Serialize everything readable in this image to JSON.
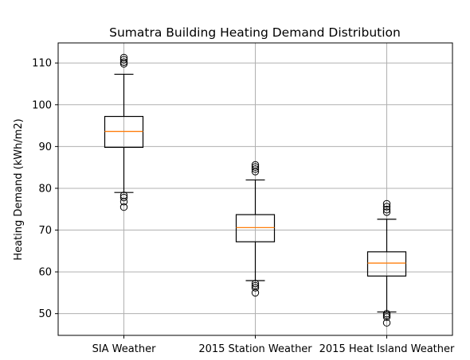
{
  "chart_data": {
    "type": "box",
    "title": "Sumatra Building Heating Demand Distribution",
    "xlabel": "",
    "ylabel": "Heating Demand (kWh/m2)",
    "ylim": [
      44.8,
      114.8
    ],
    "yticks": [
      50,
      60,
      70,
      80,
      90,
      100,
      110
    ],
    "grid": true,
    "colors": {
      "box": "#000000",
      "median": "#ff7f0e",
      "grid": "#b0b0b0"
    },
    "categories": [
      "SIA Weather",
      "2015 Station Weather",
      "2015 Heat Island Weather"
    ],
    "boxes": [
      {
        "label": "SIA Weather",
        "whisker_low": 79.0,
        "q1": 89.8,
        "median": 93.6,
        "q3": 97.2,
        "whisker_high": 107.3,
        "outliers": [
          78.3,
          77.8,
          76.8,
          75.5,
          109.8,
          110.2,
          110.8,
          111.3
        ]
      },
      {
        "label": "2015 Station Weather",
        "whisker_low": 57.9,
        "q1": 67.2,
        "median": 70.6,
        "q3": 73.7,
        "whisker_high": 82.0,
        "outliers": [
          57.2,
          56.7,
          56.2,
          55.0,
          84.0,
          84.6,
          85.1,
          85.6
        ]
      },
      {
        "label": "2015 Heat Island Weather",
        "whisker_low": 50.4,
        "q1": 59.0,
        "median": 62.1,
        "q3": 64.8,
        "whisker_high": 72.6,
        "outliers": [
          50.0,
          49.6,
          49.2,
          47.8,
          74.3,
          74.9,
          75.6,
          76.3
        ]
      }
    ]
  }
}
